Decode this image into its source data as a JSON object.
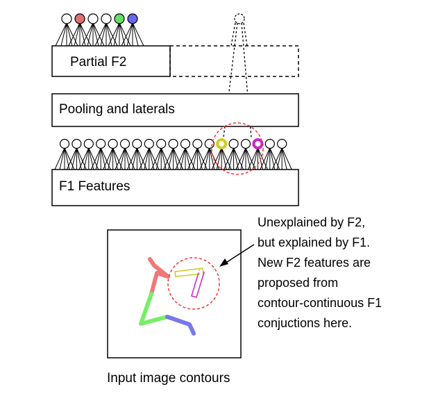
{
  "labels": {
    "partial_f2": "Partial F2",
    "pooling": "Pooling and laterals",
    "f1": "F1 Features",
    "caption": "Input image contours"
  },
  "annotation": {
    "lines": [
      "Unexplained by F2,",
      "but explained by F1.",
      "New F2 features are",
      "proposed from",
      "contour-continuous F1",
      "conjuctions here."
    ]
  },
  "colors": {
    "f2_nodes": [
      "#ffffff",
      "#e07070",
      "#ffffff",
      "#ffffff",
      "#66dd66",
      "#6666ee"
    ],
    "f1_yellow": "#cccc22",
    "f1_magenta": "#cc22cc",
    "highlight": "#ff3333",
    "contour_red": "#f07878",
    "contour_green": "#77ee66",
    "contour_blue": "#7777ee"
  }
}
